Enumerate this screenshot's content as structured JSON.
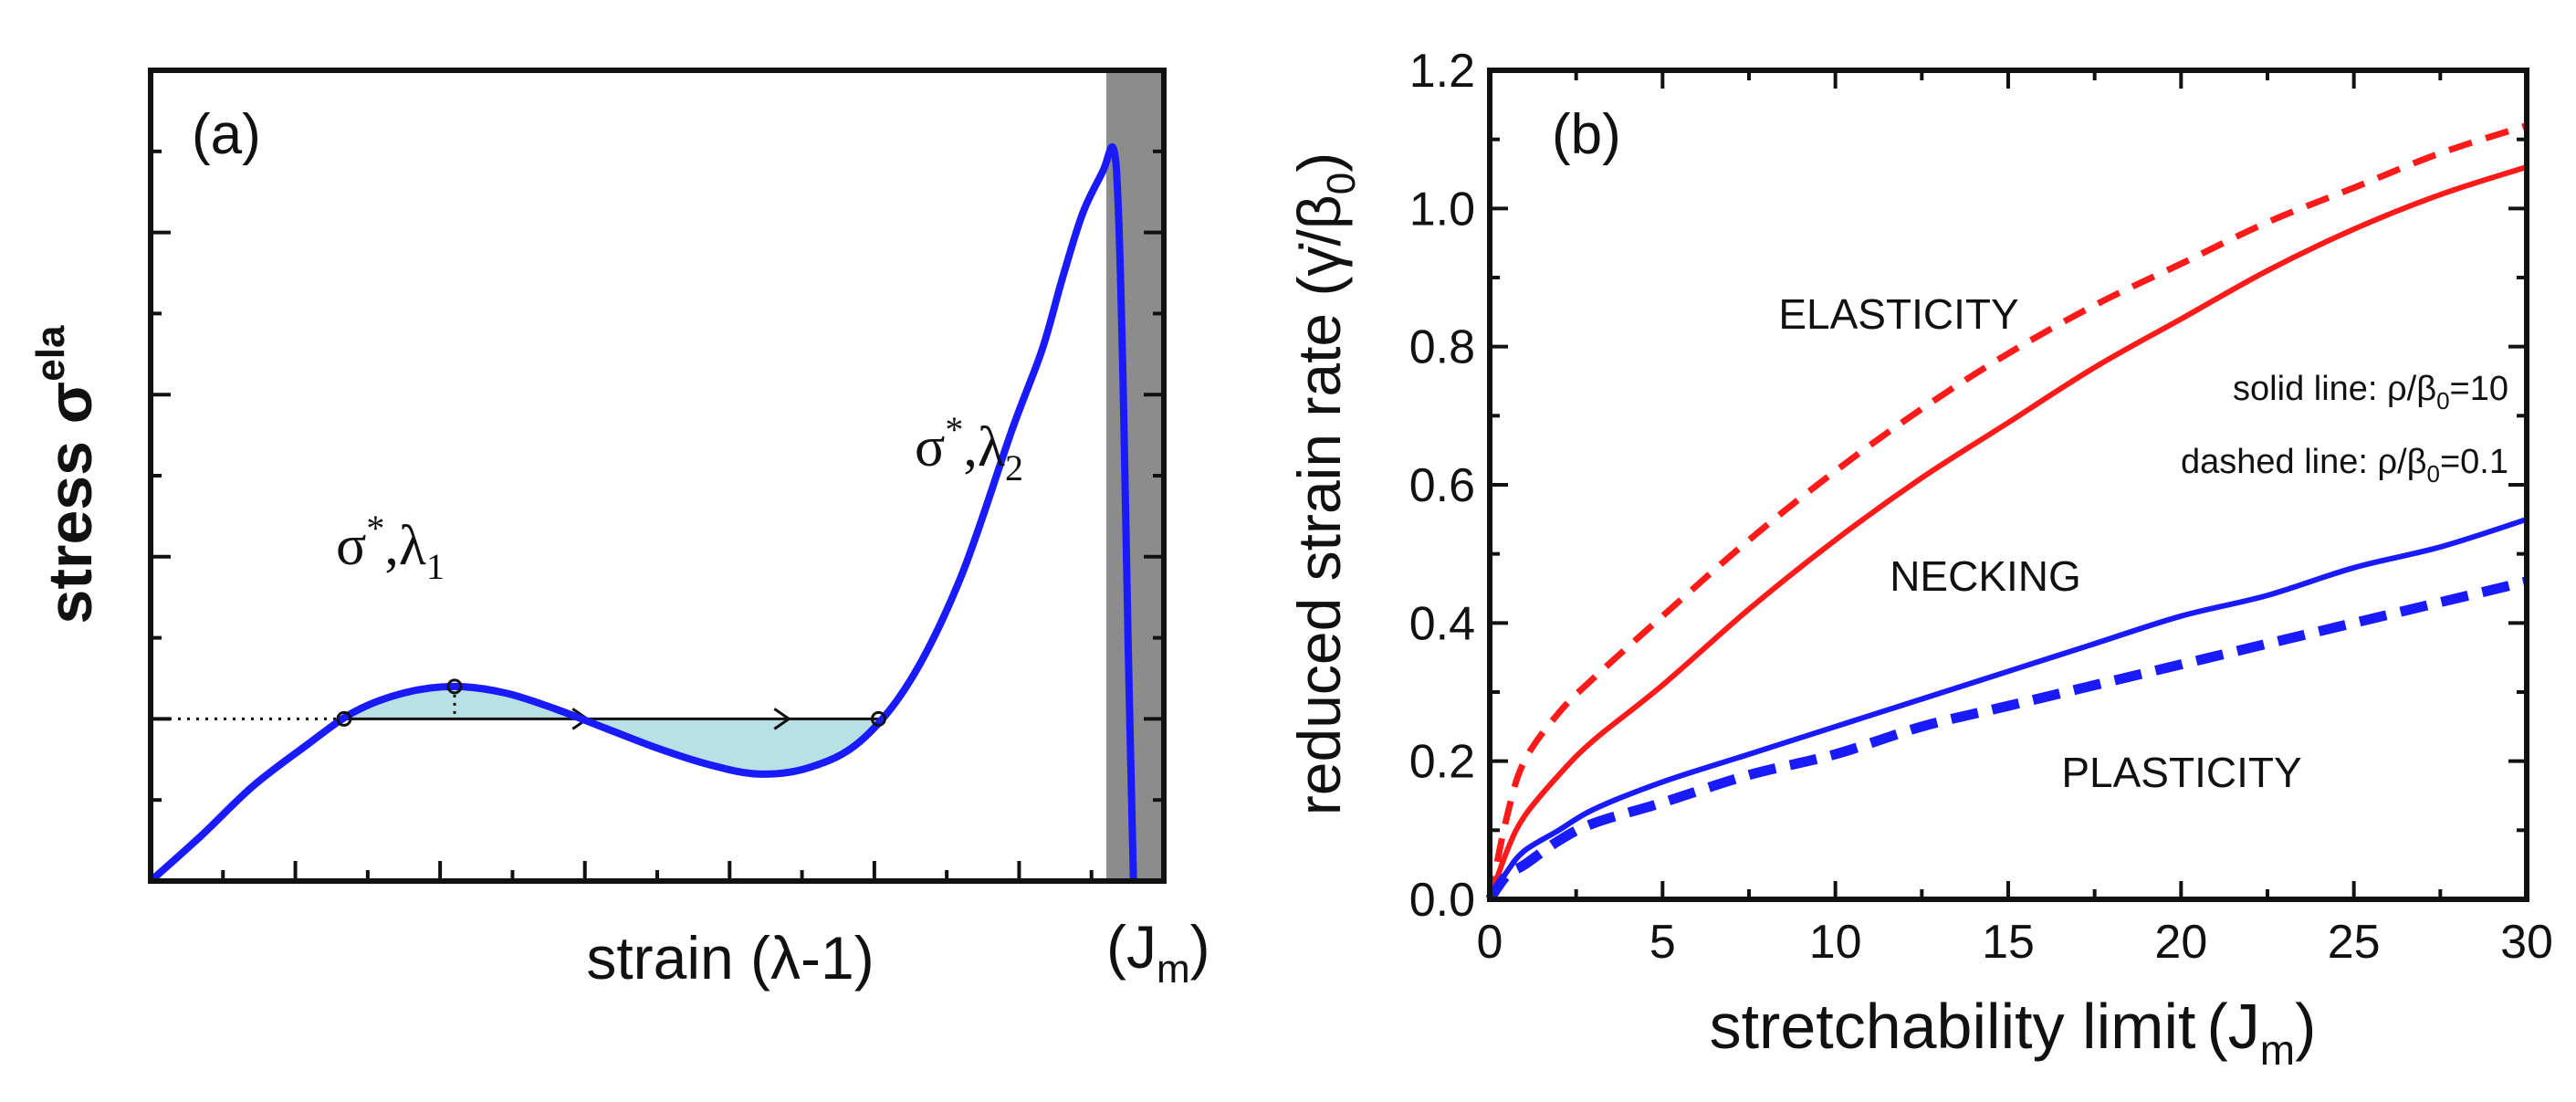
{
  "chart_data": [
    {
      "type": "line",
      "panel": "(a)",
      "title": "",
      "xlabel": "strain (λ-1)",
      "ylabel": "stress σ",
      "ylabel_superscript": "ela",
      "xlabel_right": "(J",
      "xlabel_right_sub": "m",
      "xlabel_right_close": ")",
      "x": [
        0,
        0.05,
        0.1,
        0.15,
        0.2,
        0.25,
        0.3,
        0.35,
        0.4,
        0.45,
        0.5,
        0.55,
        0.6,
        0.65,
        0.7,
        0.75,
        0.8,
        0.85,
        0.88,
        0.9,
        0.92,
        0.94,
        0.95,
        0.955,
        0.96,
        0.965,
        0.97
      ],
      "series": [
        {
          "name": "elastic stress",
          "color": "#1a1aff",
          "values": [
            0,
            0.14,
            0.29,
            0.41,
            0.52,
            0.58,
            0.6,
            0.58,
            0.53,
            0.47,
            0.41,
            0.36,
            0.33,
            0.35,
            0.43,
            0.62,
            0.94,
            1.39,
            1.64,
            1.86,
            2.06,
            2.19,
            2.26,
            2.08,
            1.5,
            0.7,
            0.0
          ]
        }
      ],
      "equal_stress_level": 0.5,
      "shaded_region": "between curve and σ* line from λ1 to λ2",
      "shade_color": "#b9e0e4",
      "limit_band_color": "#8c8c8c",
      "annotations": [
        {
          "text": "σ",
          "sup": "*",
          "mid": ",λ",
          "sub": "1",
          "anchor": "left point"
        },
        {
          "text": "σ",
          "sup": "*",
          "mid": ",λ",
          "sub": "2",
          "anchor": "right point"
        }
      ],
      "xlim": [
        0,
        1
      ],
      "ylim": [
        0,
        2.5
      ],
      "grid": false
    },
    {
      "type": "line",
      "panel": "(b)",
      "title": "",
      "xlabel": "stretchability limit",
      "xlabel_paren": "(J",
      "xlabel_sub": "m",
      "xlabel_close": ")",
      "ylabel": "reduced strain rate (γ̇/β",
      "ylabel_sub": "0",
      "ylabel_close": ")",
      "x": [
        0,
        0.5,
        1,
        2,
        3,
        5,
        7.5,
        10,
        12.5,
        15,
        17.5,
        20,
        22.5,
        25,
        27.5,
        30
      ],
      "series": [
        {
          "name": "red solid",
          "color": "#ff1a1a",
          "dash": "solid",
          "values": [
            0,
            0.07,
            0.12,
            0.18,
            0.23,
            0.31,
            0.42,
            0.52,
            0.61,
            0.69,
            0.77,
            0.84,
            0.91,
            0.97,
            1.02,
            1.06
          ]
        },
        {
          "name": "red dashed",
          "color": "#ff1a1a",
          "dash": "dashed",
          "values": [
            0,
            0.12,
            0.2,
            0.27,
            0.32,
            0.41,
            0.52,
            0.62,
            0.71,
            0.79,
            0.86,
            0.92,
            0.98,
            1.03,
            1.08,
            1.12
          ]
        },
        {
          "name": "blue solid",
          "color": "#1a1aff",
          "dash": "solid",
          "values": [
            0,
            0.04,
            0.07,
            0.1,
            0.13,
            0.17,
            0.21,
            0.25,
            0.29,
            0.33,
            0.37,
            0.41,
            0.44,
            0.48,
            0.51,
            0.55
          ]
        },
        {
          "name": "blue dashed",
          "color": "#1a1aff",
          "dash": "dashed",
          "values": [
            0,
            0.035,
            0.05,
            0.085,
            0.11,
            0.14,
            0.18,
            0.21,
            0.25,
            0.28,
            0.31,
            0.34,
            0.37,
            0.4,
            0.43,
            0.46
          ]
        }
      ],
      "xticks": [
        "0",
        "5",
        "10",
        "15",
        "20",
        "25",
        "30"
      ],
      "yticks": [
        "0.0",
        "0.2",
        "0.4",
        "0.6",
        "0.8",
        "1.0",
        "1.2"
      ],
      "xlim": [
        0,
        30
      ],
      "ylim": [
        0,
        1.2
      ],
      "region_labels": [
        "ELASTICITY",
        "NECKING",
        "PLASTICITY"
      ],
      "legend_notes": [
        {
          "pre": "solid line: ρ/β",
          "sub": "0",
          "post": "=10"
        },
        {
          "pre": "dashed line: ρ/β",
          "sub": "0",
          "post": "=0.1"
        }
      ],
      "grid": false
    }
  ]
}
